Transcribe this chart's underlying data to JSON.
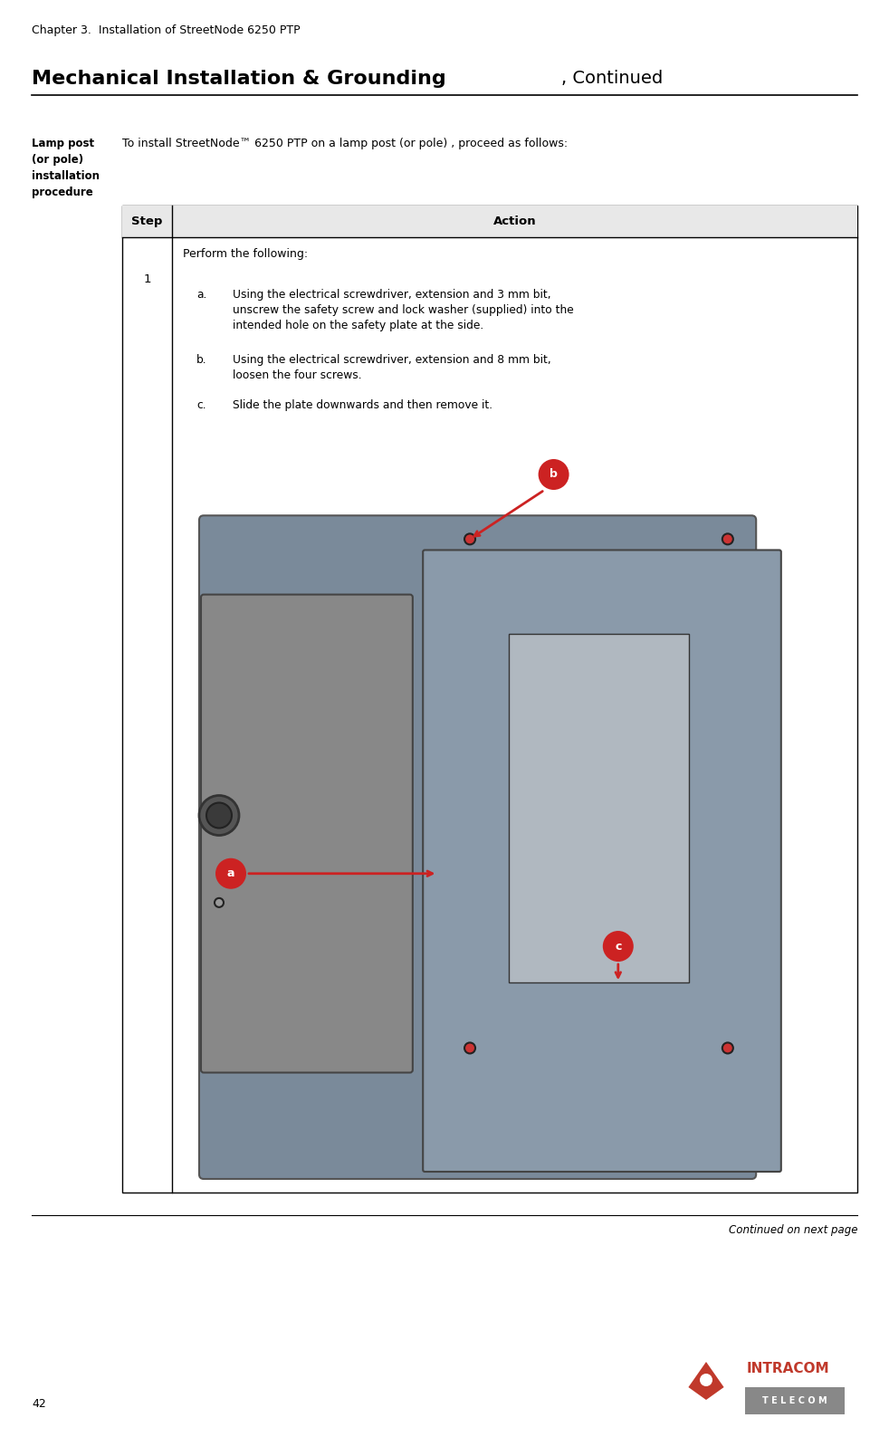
{
  "page_width": 9.82,
  "page_height": 15.87,
  "bg_color": "#ffffff",
  "header_text": "Chapter 3.  Installation of StreetNode 6250 PTP",
  "header_fontsize": 9,
  "title_bold": "Mechanical Installation & Grounding",
  "title_normal": ", Continued",
  "title_fontsize": 16,
  "left_label_bold": "Lamp post\n(or pole)\ninstallation\nprocedure",
  "intro_text": "To install StreetNode™ 6250 PTP on a lamp post (or pole) , proceed as follows:",
  "table_header_step": "Step",
  "table_header_action": "Action",
  "step_number": "1",
  "action_title": "Perform the following:",
  "action_items": [
    {
      "letter": "a.",
      "text": "Using the electrical screwdriver, extension and 3 mm bit, unscrew the safety screw and lock washer (supplied) into the intended hole on the safety plate at the side."
    },
    {
      "letter": "b.",
      "text": "Using the electrical screwdriver, extension and 8 mm bit, loosen the four screws."
    },
    {
      "letter": "c.",
      "text": "Slide the plate downwards and then remove it."
    }
  ],
  "footer_text": "Continued on next page",
  "page_number": "42",
  "intracom_color": "#c0392b",
  "table_border_color": "#000000",
  "line_color": "#000000",
  "text_color": "#000000",
  "gray_color": "#808080"
}
